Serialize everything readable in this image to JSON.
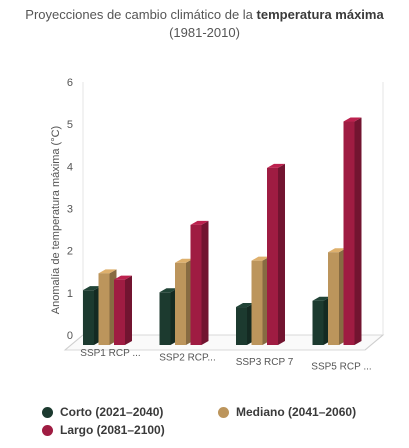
{
  "colors": {
    "corto": "#1c3a2f",
    "mediano": "#bc955c",
    "largo": "#9f1c42"
  },
  "chart_data": {
    "type": "bar",
    "title_prefix": "Proyecciones de cambio climático de la",
    "title_bold": "temperatura máxima",
    "subtitle": "(1981-2010)",
    "ylabel": "Anomalía de temperatura máxima (°C)",
    "xlabel": "",
    "ylim": [
      0,
      6
    ],
    "yticks": [
      "0",
      "1",
      "2",
      "3",
      "4",
      "5",
      "6"
    ],
    "categories": [
      "SSP1 RCP ...",
      "SSP2 RCP...",
      "SSP3 RCP 7",
      "SSP5 RCP ..."
    ],
    "series": [
      {
        "name": "Corto (2021–2040)",
        "color": "#1c3a2f",
        "values": [
          1.3,
          1.25,
          0.9,
          1.05
        ]
      },
      {
        "name": "Mediano (2041–2060)",
        "color": "#bc955c",
        "values": [
          1.7,
          1.95,
          2.0,
          2.2
        ]
      },
      {
        "name": "Largo (2081–2100)",
        "color": "#9f1c42",
        "values": [
          1.55,
          2.85,
          4.2,
          5.3
        ]
      }
    ],
    "grid": false,
    "legend_position": "bottom"
  }
}
